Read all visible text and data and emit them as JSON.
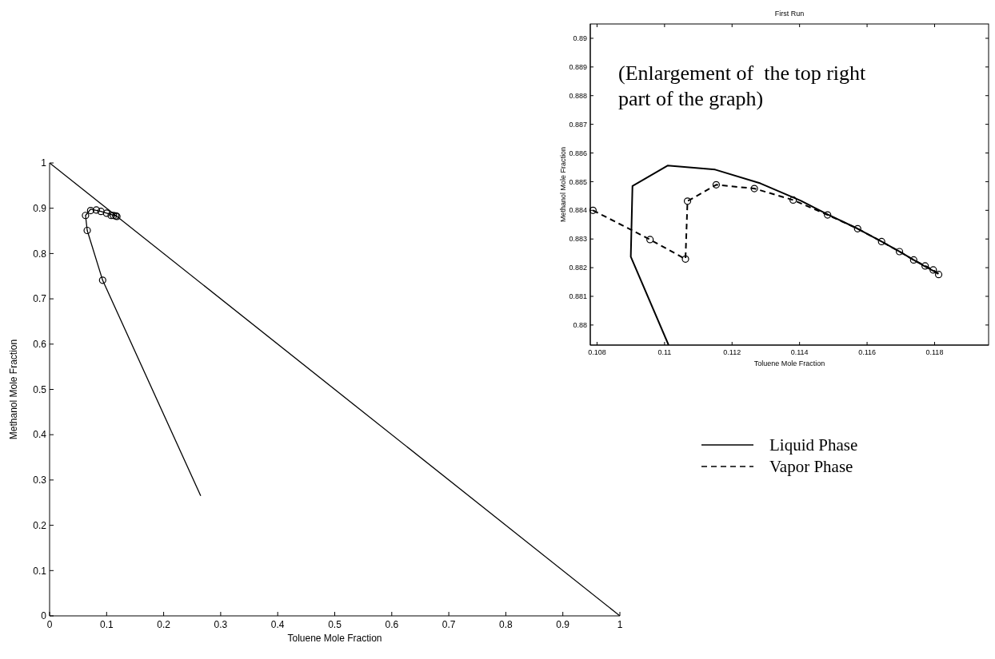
{
  "chart_data": [
    {
      "type": "line",
      "xlabel": "Toluene Mole Fraction",
      "ylabel": "Methanol Mole Fraction",
      "xlim": [
        0,
        1
      ],
      "ylim": [
        0,
        1
      ],
      "xticks": [
        0,
        0.1,
        0.2,
        0.3,
        0.4,
        0.5,
        0.6,
        0.7,
        0.8,
        0.9,
        1
      ],
      "yticks": [
        0,
        0.1,
        0.2,
        0.3,
        0.4,
        0.5,
        0.6,
        0.7,
        0.8,
        0.9,
        1
      ],
      "grid": false,
      "legend": false,
      "series": [
        {
          "type": "line",
          "color": "#000000",
          "line_style": "solid",
          "marker": "none",
          "x": [
            0,
            1
          ],
          "values": [
            1,
            0
          ]
        },
        {
          "type": "line",
          "color": "#000000",
          "line_style": "solid",
          "marker": "none",
          "x": [
            0.265,
            0.093,
            0.066,
            0.063,
            0.072,
            0.09,
            0.114,
            0.118
          ],
          "values": [
            0.265,
            0.741,
            0.851,
            0.884,
            0.898,
            0.893,
            0.884,
            0.882
          ]
        },
        {
          "type": "scatter",
          "color": "#000000",
          "marker": "circle",
          "x": [
            0.093,
            0.066,
            0.063,
            0.072,
            0.082,
            0.09,
            0.1,
            0.108,
            0.112,
            0.116,
            0.118
          ],
          "values": [
            0.741,
            0.851,
            0.884,
            0.895,
            0.896,
            0.893,
            0.889,
            0.884,
            0.884,
            0.883,
            0.882
          ]
        }
      ]
    },
    {
      "type": "line",
      "title": "First Run",
      "xlabel": "Toluene Mole Fraction",
      "ylabel": "Methanol Mole Fraction",
      "xlim": [
        0.1078,
        0.1196
      ],
      "ylim": [
        0.8793,
        0.8905
      ],
      "xticks": [
        0.108,
        0.11,
        0.112,
        0.114,
        0.116,
        0.118
      ],
      "yticks": [
        0.88,
        0.881,
        0.882,
        0.883,
        0.884,
        0.885,
        0.886,
        0.887,
        0.888,
        0.889,
        0.89
      ],
      "grid": false,
      "legend": "bottom",
      "annotations": [
        "(Enlargement of  the top right part of the graph)"
      ],
      "series": [
        {
          "type": "line",
          "name": "Liquid Phase",
          "color": "#000000",
          "line_style": "solid",
          "marker": "none",
          "x": [
            0.11012,
            0.109,
            0.10905,
            0.11009,
            0.1115,
            0.11284,
            0.11403,
            0.11483,
            0.11572,
            0.11643,
            0.11696,
            0.11741,
            0.11772,
            0.11812
          ],
          "values": [
            0.8793,
            0.88238,
            0.88485,
            0.88556,
            0.88542,
            0.88494,
            0.88434,
            0.88386,
            0.88336,
            0.88291,
            0.88256,
            0.88225,
            0.88204,
            0.88179
          ]
        },
        {
          "type": "line",
          "name": "Vapor Phase",
          "color": "#000000",
          "line_style": "dashed",
          "marker": "circle",
          "x": [
            0.10788,
            0.10957,
            0.11062,
            0.11068,
            0.11153,
            0.11266,
            0.11381,
            0.11483,
            0.11572,
            0.11643,
            0.11696,
            0.11738,
            0.11772,
            0.11796,
            0.11812
          ],
          "values": [
            0.884,
            0.88298,
            0.8823,
            0.88432,
            0.88489,
            0.88476,
            0.88436,
            0.88384,
            0.88336,
            0.88291,
            0.88256,
            0.88227,
            0.88206,
            0.88192,
            0.88176
          ]
        }
      ]
    }
  ]
}
